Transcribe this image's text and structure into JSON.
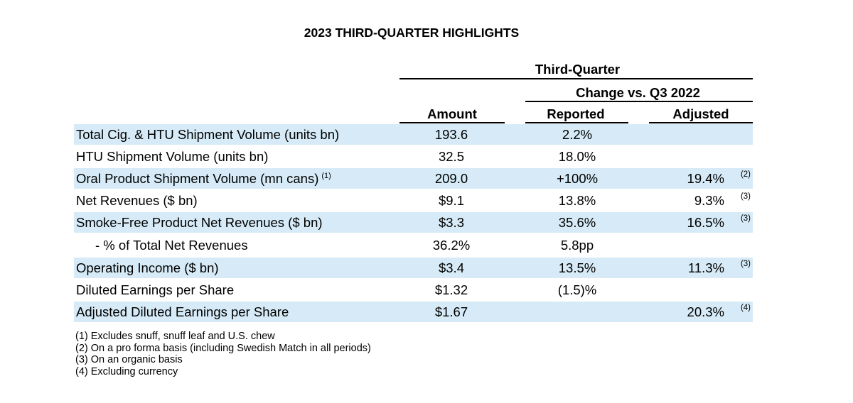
{
  "title": "2023 THIRD-QUARTER HIGHLIGHTS",
  "headers": {
    "period": "Third-Quarter",
    "change": "Change vs. Q3 2022",
    "amount": "Amount",
    "reported": "Reported",
    "adjusted": "Adjusted"
  },
  "rows": [
    {
      "label": "Total Cig. & HTU Shipment Volume (units bn)",
      "label_note": "",
      "amount": "193.6",
      "reported": "2.2%",
      "adjusted": "",
      "adjusted_note": ""
    },
    {
      "label": "HTU Shipment Volume (units bn)",
      "label_note": "",
      "amount": "32.5",
      "reported": "18.0%",
      "adjusted": "",
      "adjusted_note": ""
    },
    {
      "label": "Oral Product Shipment Volume (mn cans)",
      "label_note": "(1)",
      "amount": "209.0",
      "reported": "+100%",
      "adjusted": "19.4%",
      "adjusted_note": "(2)"
    },
    {
      "label": "Net Revenues ($ bn)",
      "label_note": "",
      "amount": "$9.1",
      "reported": "13.8%",
      "adjusted": "9.3%",
      "adjusted_note": "(3)"
    },
    {
      "label": "Smoke-Free Product Net Revenues ($ bn)",
      "label_note": "",
      "amount": "$3.3",
      "reported": "35.6%",
      "adjusted": "16.5%",
      "adjusted_note": "(3)"
    },
    {
      "label": "- % of Total Net Revenues",
      "label_note": "",
      "amount": "36.2%",
      "reported": "5.8pp",
      "adjusted": "",
      "adjusted_note": ""
    },
    {
      "label": "Operating Income ($ bn)",
      "label_note": "",
      "amount": "$3.4",
      "reported": "13.5%",
      "adjusted": "11.3%",
      "adjusted_note": "(3)"
    },
    {
      "label": "Diluted Earnings per Share",
      "label_note": "",
      "amount": "$1.32",
      "reported": "(1.5)%",
      "adjusted": "",
      "adjusted_note": ""
    },
    {
      "label": "Adjusted Diluted Earnings per Share",
      "label_note": "",
      "amount": "$1.67",
      "reported": "",
      "adjusted": "20.3%",
      "adjusted_note": "(4)"
    }
  ],
  "footnotes": [
    "(1) Excludes snuff, snuff leaf and U.S. chew",
    "(2) On a pro forma basis (including Swedish Match in all periods)",
    "(3) On an organic basis",
    "(4) Excluding currency"
  ],
  "colors": {
    "row_shade": "#d6ebf7",
    "text": "#000000"
  }
}
